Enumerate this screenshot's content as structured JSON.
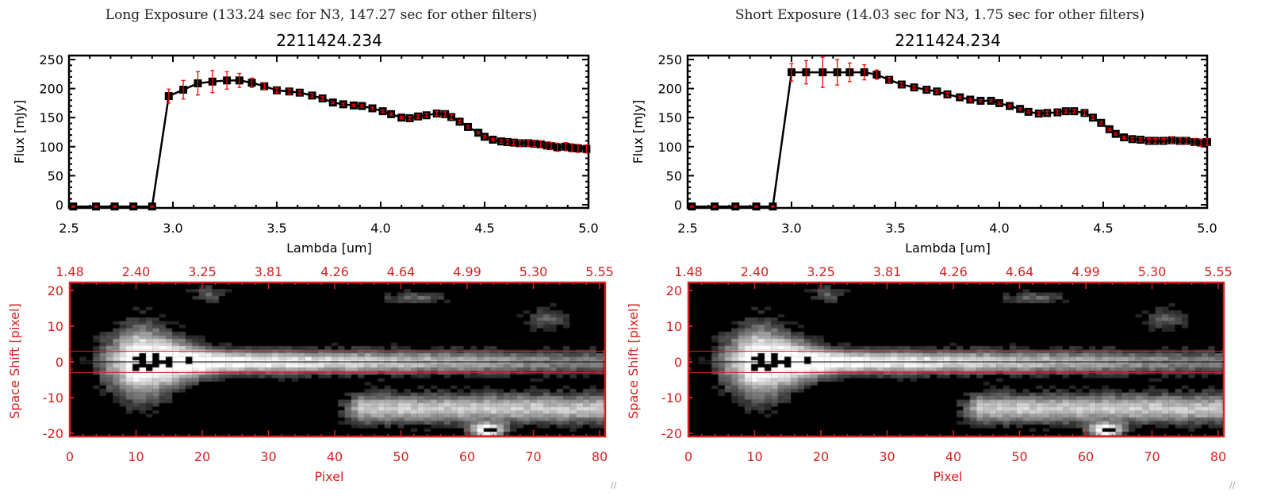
{
  "colors": {
    "axis": "#000000",
    "error": "#ff0000",
    "image_axis": "#d42020",
    "line": "#000000"
  },
  "panels": [
    {
      "title": "Long Exposure (133.24 sec for N3, 147.27 sec for other filters)",
      "object": "2211424.234",
      "chart_data": [
        {
          "type": "line",
          "title": "2211424.234",
          "xlabel": "Lambda [um]",
          "ylabel": "Flux [mJy]",
          "xlim": [
            2.5,
            5.0
          ],
          "ylim": [
            -10,
            255
          ],
          "xticks": [
            "2.5",
            "3.0",
            "3.5",
            "4.0",
            "4.5",
            "5.0"
          ],
          "yticks": [
            "0",
            "50",
            "100",
            "150",
            "200",
            "250"
          ],
          "x": [
            2.52,
            2.63,
            2.72,
            2.81,
            2.9,
            2.98,
            3.05,
            3.12,
            3.19,
            3.26,
            3.32,
            3.38,
            3.44,
            3.5,
            3.56,
            3.61,
            3.67,
            3.72,
            3.77,
            3.82,
            3.87,
            3.91,
            3.96,
            4.01,
            4.05,
            4.1,
            4.14,
            4.18,
            4.22,
            4.27,
            4.31,
            4.34,
            4.38,
            4.42,
            4.47,
            4.5,
            4.54,
            4.58,
            4.61,
            4.64,
            4.67,
            4.71,
            4.74,
            4.77,
            4.8,
            4.82,
            4.85,
            4.89,
            4.92,
            4.95,
            4.99
          ],
          "y": [
            -3,
            -3,
            -3,
            -3,
            -3,
            187,
            198,
            209,
            212,
            214,
            214,
            210,
            204,
            197,
            195,
            193,
            188,
            183,
            176,
            173,
            171,
            170,
            166,
            161,
            156,
            150,
            149,
            152,
            154,
            157,
            156,
            151,
            143,
            134,
            124,
            117,
            112,
            109,
            108,
            107,
            106,
            106,
            105,
            104,
            102,
            101,
            99,
            100,
            98,
            97,
            96
          ],
          "yerr": [
            1,
            1,
            1,
            1,
            1,
            12,
            16,
            20,
            19,
            15,
            12,
            8,
            5,
            4,
            4,
            3,
            3,
            3,
            2,
            2,
            2,
            2,
            2,
            2,
            2,
            2,
            3,
            3,
            3,
            4,
            4,
            4,
            3,
            2,
            2,
            2,
            2,
            3,
            4,
            4,
            5,
            5,
            5,
            6,
            6,
            6,
            7,
            7,
            7,
            7,
            7
          ]
        },
        {
          "type": "heatmap",
          "xlabel": "Pixel",
          "ylabel": "Space Shift [pixel]",
          "xlim": [
            0,
            81
          ],
          "ylim": [
            -21,
            21
          ],
          "xticks": [
            "0",
            "10",
            "20",
            "30",
            "40",
            "50",
            "60",
            "70",
            "80"
          ],
          "yticks": [
            "-20",
            "-10",
            "0",
            "10",
            "20"
          ],
          "top_ticks": [
            "1.48",
            "2.40",
            "3.25",
            "3.81",
            "4.26",
            "4.64",
            "4.99",
            "5.30",
            "5.55"
          ],
          "reference_lines": [
            3,
            0,
            -3
          ]
        }
      ]
    },
    {
      "title": "Short Exposure (14.03 sec for N3, 1.75 sec for other filters)",
      "object": "2211424.234",
      "chart_data": [
        {
          "type": "line",
          "title": "2211424.234",
          "xlabel": "Lambda [um]",
          "ylabel": "Flux [mJy]",
          "xlim": [
            2.5,
            5.0
          ],
          "ylim": [
            -10,
            255
          ],
          "xticks": [
            "2.5",
            "3.0",
            "3.5",
            "4.0",
            "4.5",
            "5.0"
          ],
          "yticks": [
            "0",
            "50",
            "100",
            "150",
            "200",
            "250"
          ],
          "x": [
            2.52,
            2.63,
            2.73,
            2.83,
            2.91,
            3.0,
            3.07,
            3.15,
            3.22,
            3.28,
            3.35,
            3.41,
            3.47,
            3.53,
            3.59,
            3.65,
            3.7,
            3.75,
            3.81,
            3.86,
            3.91,
            3.96,
            4.0,
            4.05,
            4.1,
            4.14,
            4.19,
            4.23,
            4.28,
            4.32,
            4.36,
            4.41,
            4.45,
            4.49,
            4.53,
            4.56,
            4.6,
            4.64,
            4.68,
            4.72,
            4.75,
            4.79,
            4.83,
            4.87,
            4.9,
            4.94,
            4.97,
            5.0
          ],
          "y": [
            -3,
            -3,
            -3,
            -3,
            -3,
            228,
            228,
            228,
            228,
            228,
            228,
            224,
            215,
            207,
            202,
            198,
            195,
            190,
            185,
            181,
            179,
            179,
            175,
            170,
            165,
            160,
            157,
            158,
            159,
            161,
            161,
            158,
            150,
            141,
            130,
            122,
            116,
            113,
            112,
            110,
            110,
            110,
            111,
            110,
            110,
            108,
            107,
            108
          ],
          "yerr": [
            1,
            1,
            1,
            1,
            1,
            15,
            20,
            26,
            22,
            16,
            13,
            8,
            4,
            3,
            3,
            3,
            3,
            3,
            2,
            2,
            2,
            2,
            2,
            2,
            2,
            2,
            3,
            3,
            3,
            3,
            3,
            4,
            3,
            2,
            2,
            2,
            2,
            3,
            3,
            4,
            4,
            4,
            5,
            5,
            5,
            6,
            6,
            6
          ]
        },
        {
          "type": "heatmap",
          "xlabel": "Pixel",
          "ylabel": "Space Shift [pixel]",
          "xlim": [
            0,
            81
          ],
          "ylim": [
            -21,
            21
          ],
          "xticks": [
            "0",
            "10",
            "20",
            "30",
            "40",
            "50",
            "60",
            "70",
            "80"
          ],
          "yticks": [
            "-20",
            "-10",
            "0",
            "10",
            "20"
          ],
          "top_ticks": [
            "1.48",
            "2.40",
            "3.25",
            "3.81",
            "4.26",
            "4.64",
            "4.99",
            "5.30",
            "5.55"
          ],
          "reference_lines": [
            3,
            0,
            -3
          ]
        }
      ]
    }
  ]
}
